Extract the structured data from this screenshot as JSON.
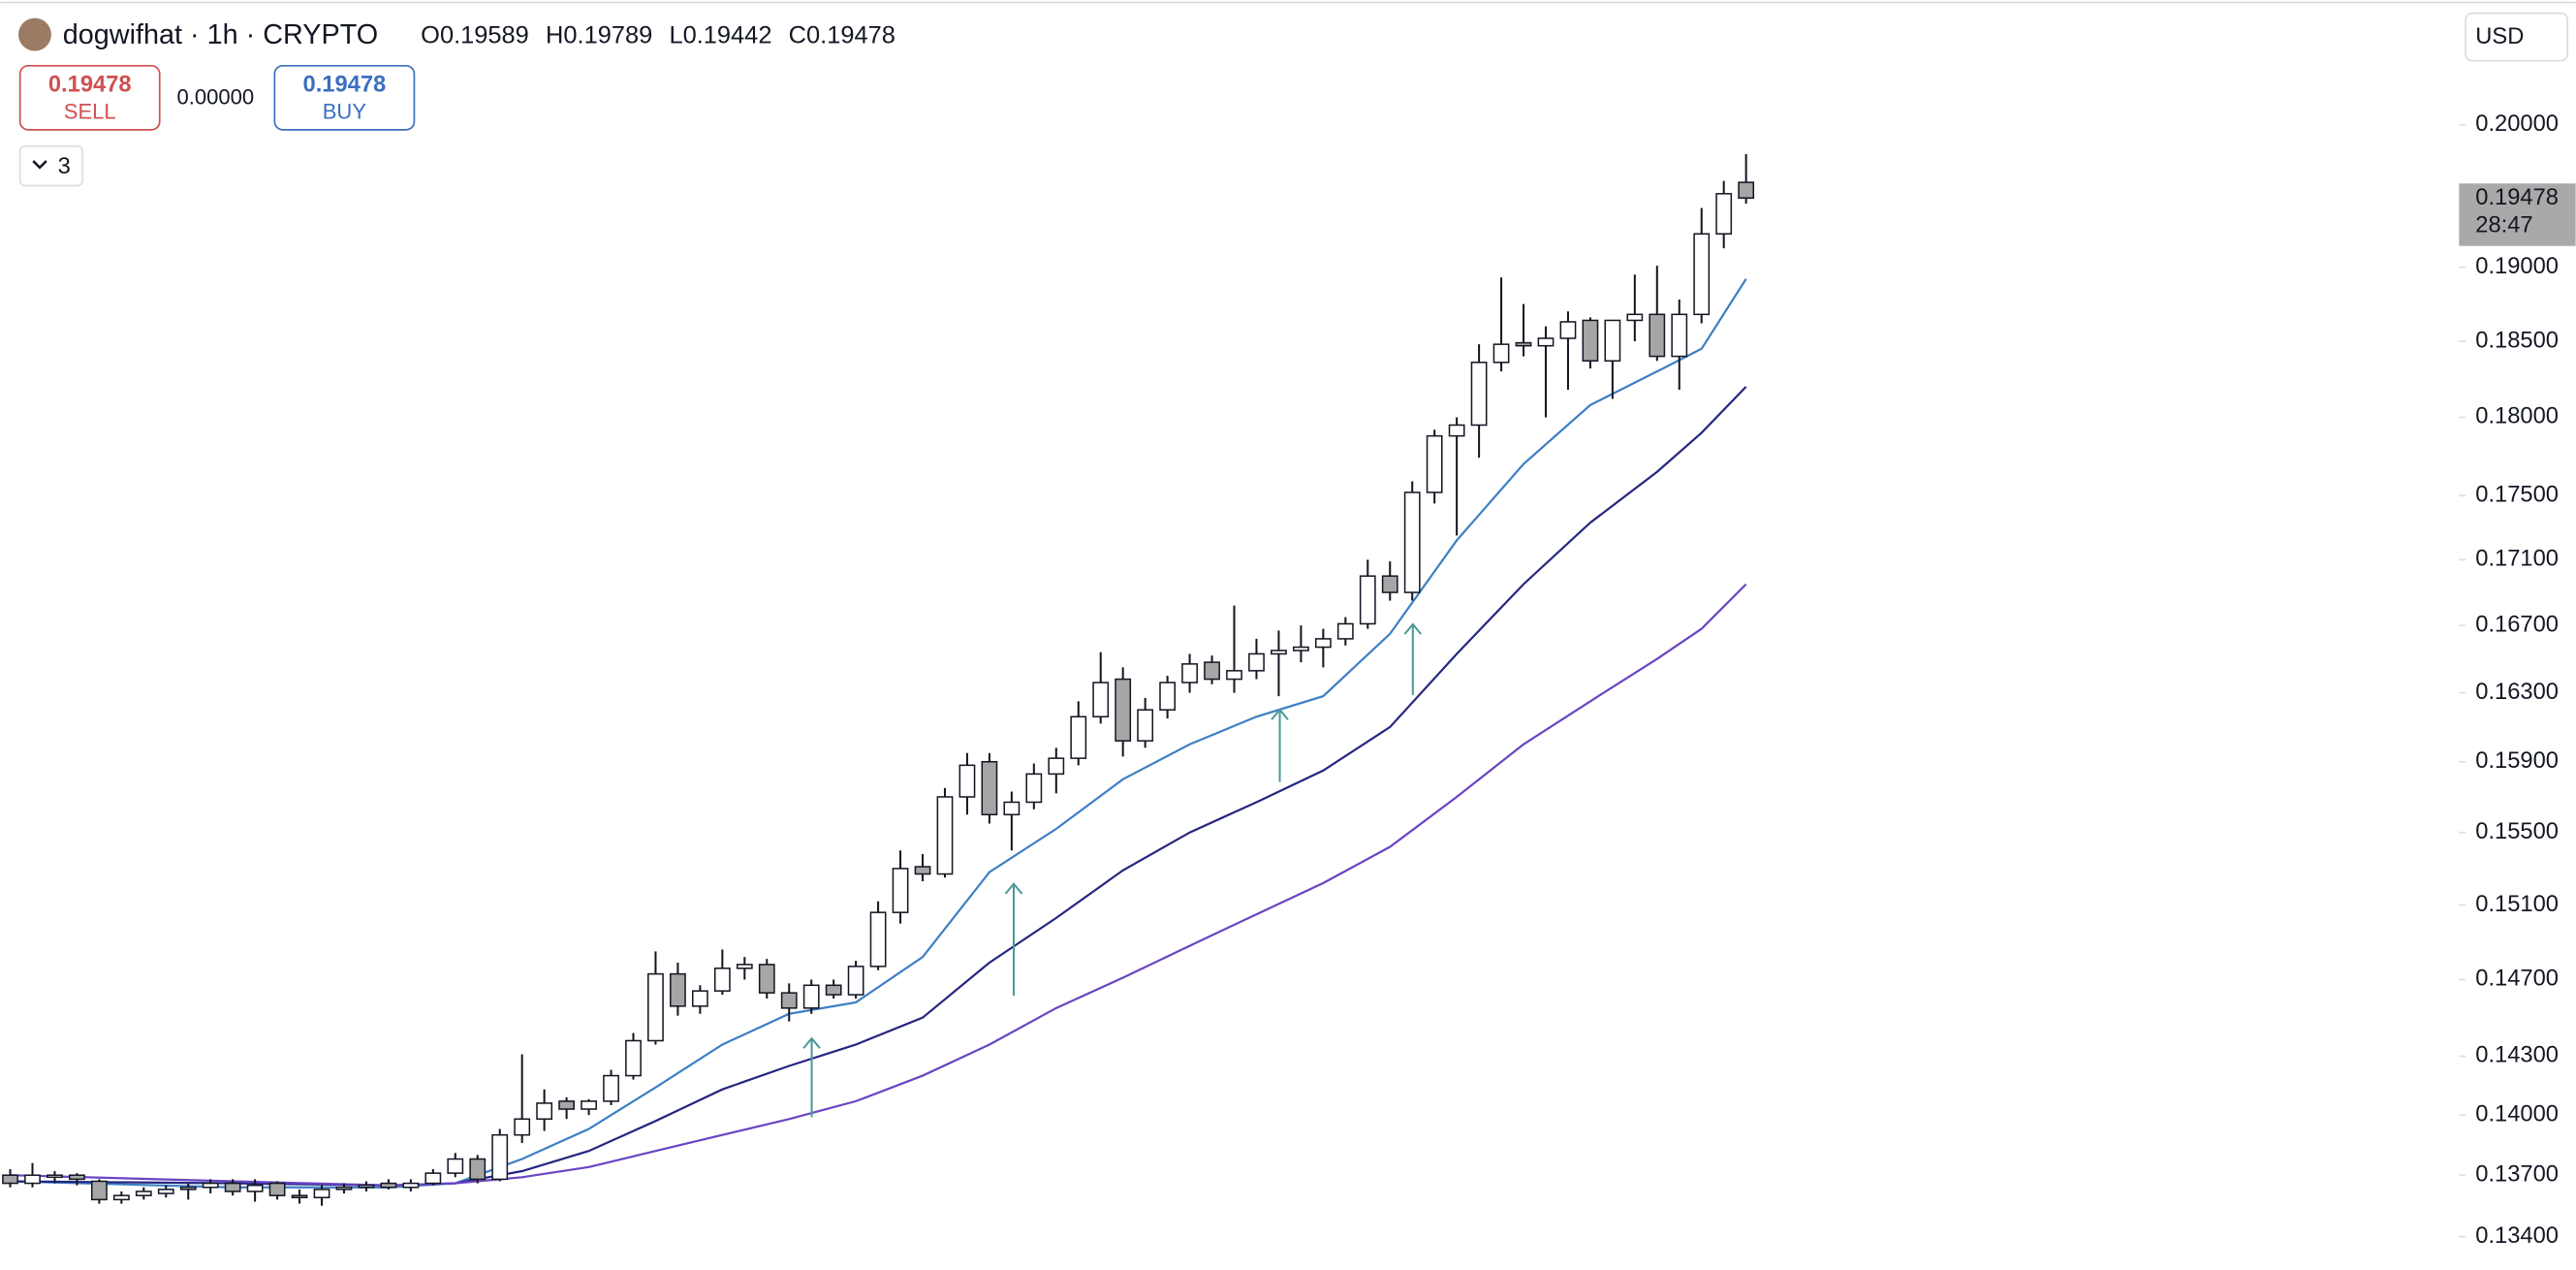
{
  "header": {
    "symbol": "dogwifhat · 1h · CRYPTO",
    "ohlc": [
      {
        "label": "O",
        "value": "0.19589"
      },
      {
        "label": "H",
        "value": "0.19789"
      },
      {
        "label": "L",
        "value": "0.19442"
      },
      {
        "label": "C",
        "value": "0.19478"
      }
    ],
    "sell_price": "0.19478",
    "sell_label": "SELL",
    "spread": "0.00000",
    "buy_price": "0.19478",
    "buy_label": "BUY",
    "indicator_count": "3",
    "currency": "USD"
  },
  "chart_data": {
    "type": "candlestick",
    "log_scale": true,
    "grid": false,
    "ylim": [
      0.1324,
      0.2092
    ],
    "yticks": [
      {
        "value": 0.2,
        "label": "0.20000"
      },
      {
        "value": 0.19,
        "label": "0.19000"
      },
      {
        "value": 0.185,
        "label": "0.18500"
      },
      {
        "value": 0.18,
        "label": "0.18000"
      },
      {
        "value": 0.175,
        "label": "0.17500"
      },
      {
        "value": 0.171,
        "label": "0.17100"
      },
      {
        "value": 0.167,
        "label": "0.16700"
      },
      {
        "value": 0.163,
        "label": "0.16300"
      },
      {
        "value": 0.159,
        "label": "0.15900"
      },
      {
        "value": 0.155,
        "label": "0.15500"
      },
      {
        "value": 0.151,
        "label": "0.15100"
      },
      {
        "value": 0.147,
        "label": "0.14700"
      },
      {
        "value": 0.143,
        "label": "0.14300"
      },
      {
        "value": 0.14,
        "label": "0.14000"
      },
      {
        "value": 0.137,
        "label": "0.13700"
      },
      {
        "value": 0.134,
        "label": "0.13400"
      }
    ],
    "last_price": {
      "value": 0.19478,
      "label": "0.19478"
    },
    "countdown": "28:47",
    "up_color": "#ffffff",
    "down_color": "#a6a6a6",
    "open": [
      0.137,
      0.1366,
      0.1369,
      0.137,
      0.1367,
      0.1358,
      0.136,
      0.1361,
      0.1363,
      0.1364,
      0.1366,
      0.1362,
      0.1366,
      0.136,
      0.1359,
      0.1363,
      0.1364,
      0.1366,
      0.1364,
      0.1366,
      0.1371,
      0.1378,
      0.1368,
      0.139,
      0.1398,
      0.1407,
      0.1403,
      0.1407,
      0.142,
      0.1438,
      0.1473,
      0.1456,
      0.1464,
      0.1476,
      0.1478,
      0.1463,
      0.1455,
      0.1467,
      0.1462,
      0.1477,
      0.1506,
      0.1531,
      0.1527,
      0.157,
      0.159,
      0.156,
      0.1567,
      0.1583,
      0.1592,
      0.1616,
      0.1638,
      0.1602,
      0.162,
      0.1636,
      0.1648,
      0.1638,
      0.1643,
      0.1653,
      0.1655,
      0.1657,
      0.1662,
      0.1671,
      0.17,
      0.169,
      0.1752,
      0.1788,
      0.1795,
      0.1836,
      0.1849,
      0.1847,
      0.1852,
      0.1864,
      0.1837,
      0.1864,
      0.1868,
      0.184,
      0.1868,
      0.1923,
      0.1959
    ],
    "high": [
      0.1373,
      0.1376,
      0.1372,
      0.1371,
      0.1368,
      0.1362,
      0.1364,
      0.1365,
      0.1366,
      0.1368,
      0.1368,
      0.1368,
      0.1367,
      0.1363,
      0.1365,
      0.1366,
      0.1367,
      0.1368,
      0.1368,
      0.1373,
      0.1381,
      0.138,
      0.1393,
      0.1431,
      0.1413,
      0.1409,
      0.1408,
      0.1423,
      0.1442,
      0.1485,
      0.1479,
      0.1467,
      0.1486,
      0.1482,
      0.1481,
      0.1468,
      0.147,
      0.147,
      0.148,
      0.1512,
      0.154,
      0.1538,
      0.1575,
      0.1595,
      0.1595,
      0.1573,
      0.1589,
      0.1598,
      0.1625,
      0.1654,
      0.1645,
      0.1627,
      0.164,
      0.1653,
      0.1652,
      0.1682,
      0.1662,
      0.1667,
      0.167,
      0.1668,
      0.1675,
      0.171,
      0.1709,
      0.1759,
      0.1792,
      0.18,
      0.1848,
      0.1893,
      0.1875,
      0.186,
      0.187,
      0.1866,
      0.1864,
      0.1895,
      0.1901,
      0.1878,
      0.1941,
      0.196,
      0.1979
    ],
    "low": [
      0.1364,
      0.1364,
      0.1366,
      0.1365,
      0.1356,
      0.1356,
      0.1358,
      0.1359,
      0.1358,
      0.1361,
      0.136,
      0.1357,
      0.1358,
      0.1356,
      0.1355,
      0.1361,
      0.1362,
      0.1363,
      0.1362,
      0.1365,
      0.1369,
      0.1366,
      0.1367,
      0.1386,
      0.1392,
      0.1398,
      0.14,
      0.1405,
      0.1418,
      0.1436,
      0.1451,
      0.1452,
      0.1462,
      0.147,
      0.146,
      0.1448,
      0.1452,
      0.146,
      0.146,
      0.1475,
      0.15,
      0.1523,
      0.1525,
      0.156,
      0.1555,
      0.154,
      0.1563,
      0.1572,
      0.1588,
      0.1612,
      0.1593,
      0.1598,
      0.1615,
      0.163,
      0.1635,
      0.163,
      0.1638,
      0.1628,
      0.1648,
      0.1645,
      0.1658,
      0.1668,
      0.1685,
      0.1685,
      0.1745,
      0.1725,
      0.1774,
      0.183,
      0.184,
      0.18,
      0.1818,
      0.1832,
      0.1812,
      0.185,
      0.1837,
      0.1818,
      0.1862,
      0.1913,
      0.1944
    ],
    "close": [
      0.1366,
      0.137,
      0.137,
      0.1368,
      0.1358,
      0.136,
      0.1362,
      0.1363,
      0.1364,
      0.1366,
      0.1362,
      0.1365,
      0.136,
      0.1359,
      0.1363,
      0.1364,
      0.1365,
      0.1364,
      0.1366,
      0.1371,
      0.1378,
      0.1368,
      0.139,
      0.1398,
      0.1406,
      0.1403,
      0.1407,
      0.142,
      0.1438,
      0.1473,
      0.1456,
      0.1464,
      0.1476,
      0.1478,
      0.1463,
      0.1455,
      0.1467,
      0.1462,
      0.1477,
      0.1506,
      0.153,
      0.1527,
      0.157,
      0.1588,
      0.156,
      0.1567,
      0.1583,
      0.1592,
      0.1616,
      0.1636,
      0.1602,
      0.162,
      0.1636,
      0.1647,
      0.1638,
      0.1643,
      0.1653,
      0.1655,
      0.1657,
      0.1662,
      0.1671,
      0.17,
      0.169,
      0.1752,
      0.1788,
      0.1795,
      0.1836,
      0.1848,
      0.1847,
      0.1852,
      0.1863,
      0.1837,
      0.1864,
      0.1868,
      0.184,
      0.1868,
      0.1923,
      0.1951,
      0.1948
    ],
    "series": [
      {
        "color": "#3d7fc4",
        "x": [
          0,
          10,
          17,
          20,
          23,
          26,
          29,
          32,
          35,
          38,
          41,
          44,
          47,
          50,
          53,
          56,
          59,
          62,
          65,
          68,
          71,
          74,
          76,
          78
        ],
        "values": [
          0.1367,
          0.1364,
          0.1364,
          0.1366,
          0.1378,
          0.1393,
          0.1414,
          0.1436,
          0.1452,
          0.1458,
          0.1482,
          0.1528,
          0.1552,
          0.158,
          0.16,
          0.1616,
          0.1628,
          0.1665,
          0.1722,
          0.177,
          0.1808,
          0.183,
          0.1845,
          0.1892
        ]
      },
      {
        "color": "#25267f",
        "x": [
          0,
          10,
          17,
          20,
          23,
          26,
          29,
          32,
          35,
          38,
          41,
          44,
          47,
          50,
          53,
          56,
          59,
          62,
          65,
          68,
          71,
          74,
          76,
          78
        ],
        "values": [
          0.1367,
          0.1366,
          0.1365,
          0.1366,
          0.1372,
          0.1382,
          0.1397,
          0.1413,
          0.1425,
          0.1436,
          0.145,
          0.1479,
          0.1503,
          0.1529,
          0.155,
          0.1567,
          0.1585,
          0.161,
          0.1653,
          0.1695,
          0.1733,
          0.1765,
          0.179,
          0.182
        ]
      },
      {
        "color": "#6a44c4",
        "x": [
          0,
          10,
          17,
          20,
          23,
          26,
          29,
          32,
          35,
          38,
          41,
          44,
          47,
          50,
          53,
          56,
          59,
          62,
          65,
          68,
          71,
          74,
          76,
          78
        ],
        "values": [
          0.137,
          0.1367,
          0.1365,
          0.1366,
          0.1369,
          0.1374,
          0.1382,
          0.139,
          0.1398,
          0.1407,
          0.142,
          0.1436,
          0.1455,
          0.1471,
          0.1488,
          0.1505,
          0.1522,
          0.1542,
          0.157,
          0.16,
          0.1625,
          0.165,
          0.1668,
          0.1695
        ]
      }
    ]
  }
}
